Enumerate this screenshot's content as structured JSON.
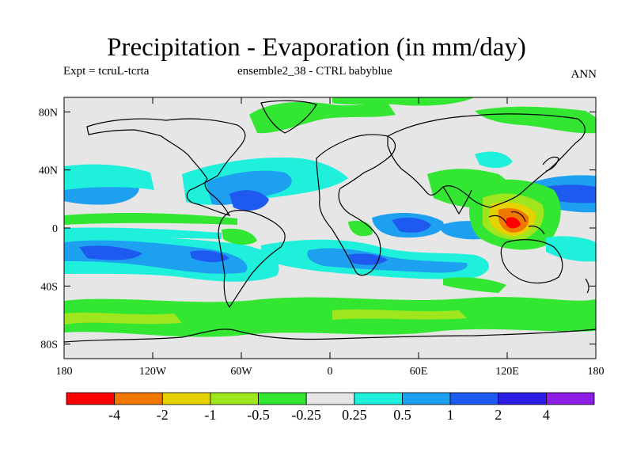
{
  "title": "Precipitation - Evaporation (in mm/day)",
  "subtitle_left": "Expt = tcruL-tcrta",
  "subtitle_center": "ensemble2_38 - CTRL babyblue",
  "subtitle_right": "ANN",
  "chart_data": {
    "type": "map",
    "projection": "cylindrical-equidistant",
    "lon_range": [
      -180,
      180
    ],
    "lat_range": [
      -90,
      90
    ],
    "y_tick_labels": [
      "80N",
      "40N",
      "0",
      "40S",
      "80S"
    ],
    "y_tick_values": [
      80,
      40,
      0,
      -40,
      -80
    ],
    "x_tick_labels": [
      "180",
      "120W",
      "60W",
      "0",
      "60E",
      "120E",
      "180"
    ],
    "x_tick_values": [
      -180,
      -120,
      -60,
      0,
      60,
      120,
      180
    ],
    "colorbar": {
      "boundary_labels": [
        "-4",
        "-2",
        "-1",
        "-0.5",
        "-0.25",
        "0.25",
        "0.5",
        "1",
        "2",
        "4"
      ],
      "colors": [
        "#ff0000",
        "#f07800",
        "#e6d200",
        "#a0e61e",
        "#32e632",
        "#e6e6e6",
        "#1ef0dc",
        "#1ea0f0",
        "#1e5af0",
        "#2d1ee6",
        "#8c1ee6"
      ]
    },
    "regions": [
      {
        "name": "southern-ocean-green-band",
        "level": "-0.25",
        "color": "#32e632"
      },
      {
        "name": "south-pacific-blue",
        "level": "1",
        "color": "#1ea0f0"
      },
      {
        "name": "north-pacific-blue",
        "level": "1",
        "color": "#1ea0f0"
      },
      {
        "name": "equatorial-atlantic-blue",
        "level": "1",
        "color": "#1ea0f0"
      },
      {
        "name": "maritime-continent-orange",
        "level": "-2",
        "color": "#f07800"
      },
      {
        "name": "subtropical-cyan",
        "level": "0.5",
        "color": "#1ef0dc"
      },
      {
        "name": "north-pacific-strong-blue",
        "level": "2",
        "color": "#1e5af0"
      },
      {
        "name": "south-indian-blue",
        "level": "1",
        "color": "#1ea0f0"
      }
    ]
  }
}
